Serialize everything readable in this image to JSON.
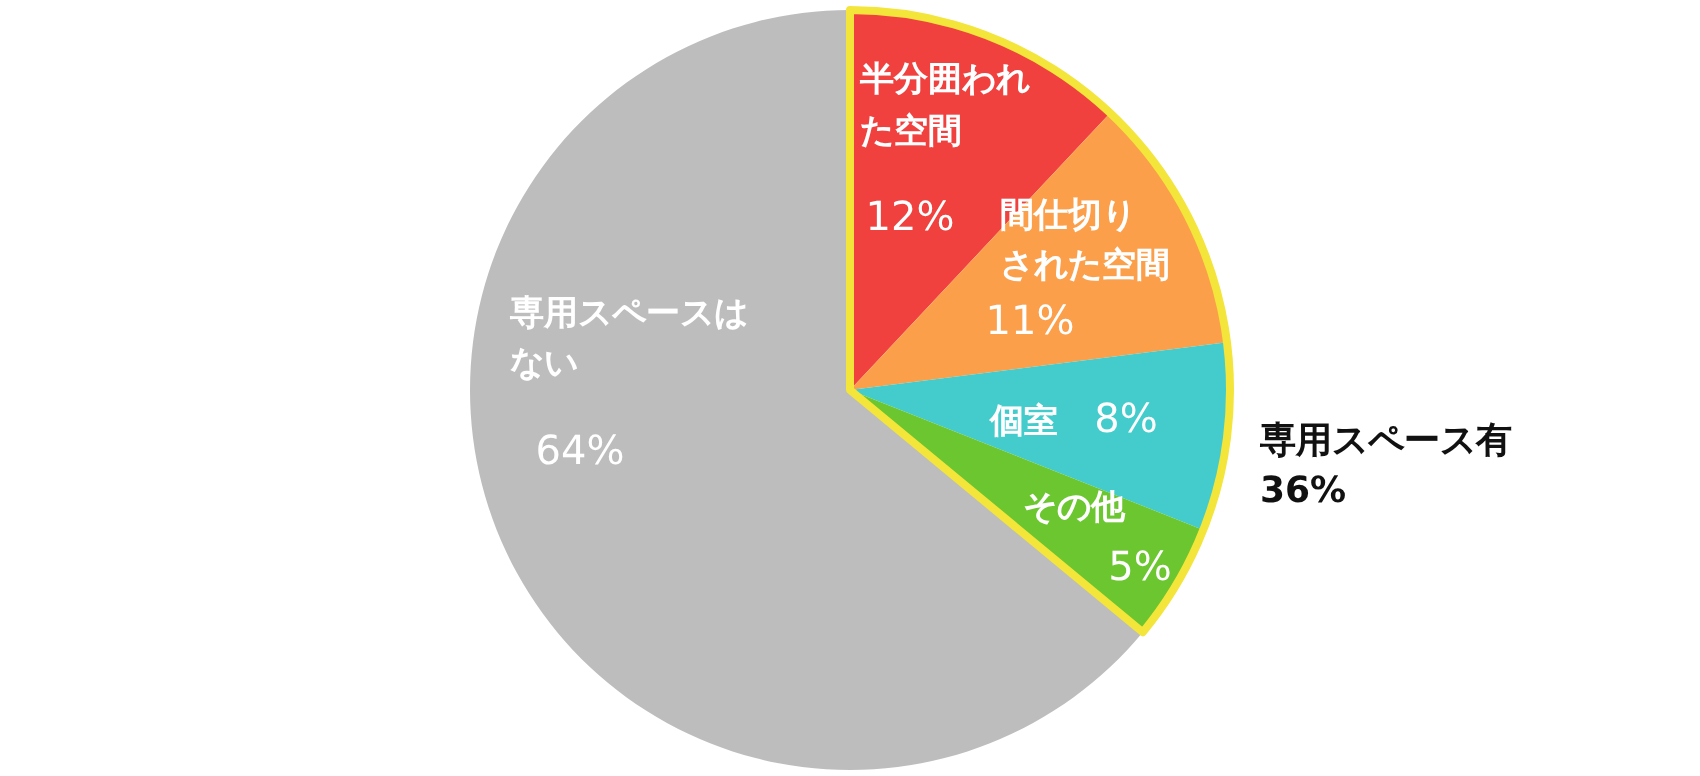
{
  "chart_data": {
    "type": "pie",
    "categories": [
      "半分囲われた空間",
      "間仕切りされた空間",
      "個室",
      "その他",
      "専用スペースはない"
    ],
    "values": [
      12,
      11,
      8,
      5,
      64
    ],
    "value_labels": [
      "12%",
      "11%",
      "8%",
      "5%",
      "64%"
    ],
    "colors": [
      "#f0413f",
      "#fb9f4a",
      "#44cccc",
      "#6bc62f",
      "#bdbdbd"
    ],
    "annotations": [
      "専用スペース有",
      "36%"
    ]
  }
}
